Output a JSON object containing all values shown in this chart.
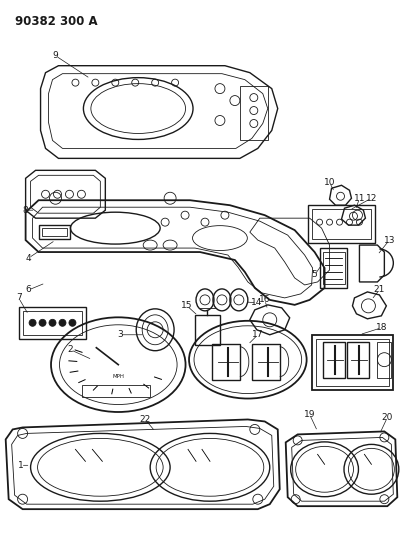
{
  "title": "90382 300 A",
  "bg_color": "#ffffff",
  "line_color": "#1a1a1a",
  "text_color": "#1a1a1a",
  "title_fontsize": 8.5,
  "label_fontsize": 6.5,
  "fig_w": 4.02,
  "fig_h": 5.33,
  "dpi": 100
}
